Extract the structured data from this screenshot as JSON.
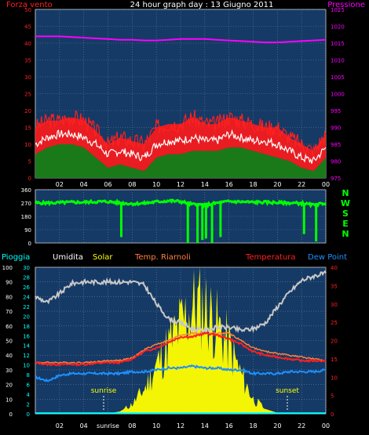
{
  "title": "24 hour graph day : 13 Giugno 2011",
  "colors": {
    "red": "#ff2020",
    "magenta": "#ff00ff",
    "green": "#1a7a1a",
    "brightGreen": "#00ff00",
    "white": "#ffffff",
    "yellow": "#ffff00",
    "orange": "#ff8040",
    "blue": "#1e90ff",
    "cyan": "#00ffff",
    "gray": "#c8c8c8",
    "navy": "#153a66",
    "grid": "#6b7f99"
  },
  "chart_data": [
    {
      "type": "line",
      "left_label": "Forza vento",
      "right_label": "Pressione",
      "x_ticks": [
        "02",
        "04",
        "06",
        "08",
        "10",
        "12",
        "14",
        "16",
        "18",
        "20",
        "22",
        "00"
      ],
      "ylim_left": [
        0,
        50
      ],
      "y_ticks_left": [
        0,
        5,
        10,
        15,
        20,
        25,
        30,
        35,
        40,
        45,
        50
      ],
      "ylim_right": [
        975,
        1025
      ],
      "y_ticks_right": [
        975,
        980,
        985,
        990,
        995,
        1000,
        1005,
        1010,
        1015,
        1020,
        1025
      ],
      "x": [
        0,
        1,
        2,
        3,
        4,
        5,
        6,
        7,
        8,
        9,
        10,
        11,
        12,
        13,
        14,
        15,
        16,
        17,
        18,
        19,
        20,
        21,
        22,
        23,
        24
      ],
      "series": [
        {
          "axis": "right",
          "values": [
            1017,
            1017,
            1017,
            1016.8,
            1016.6,
            1016.4,
            1016.2,
            1016,
            1016,
            1015.8,
            1015.8,
            1016,
            1016.2,
            1016.2,
            1016.2,
            1016,
            1015.8,
            1015.6,
            1015.4,
            1015.2,
            1015.2,
            1015.4,
            1015.6,
            1015.8,
            1016
          ]
        },
        {
          "axis": "left",
          "values": [
            15,
            17,
            17,
            18,
            17,
            14,
            10,
            12,
            11,
            10,
            15,
            16,
            16,
            18,
            16,
            16,
            18,
            17,
            16,
            15,
            15,
            12,
            10,
            8,
            13
          ]
        },
        {
          "axis": "left",
          "values": [
            10,
            12,
            13,
            13,
            12,
            10,
            7,
            8,
            7,
            6,
            10,
            11,
            11,
            12,
            11,
            11,
            13,
            12,
            11,
            11,
            10,
            8,
            6,
            5,
            9
          ]
        },
        {
          "axis": "left",
          "values": [
            7,
            9,
            10,
            10,
            9,
            6,
            3,
            4,
            3,
            2,
            6,
            7,
            7,
            8,
            8,
            8,
            9,
            9,
            8,
            7,
            6,
            5,
            3,
            2,
            6
          ]
        }
      ]
    },
    {
      "type": "line",
      "right_label": "NWSEN",
      "ylim": [
        0,
        360
      ],
      "y_ticks": [
        0,
        90,
        180,
        270,
        360
      ],
      "x": [
        0,
        1,
        2,
        3,
        4,
        5,
        6,
        7,
        8,
        9,
        10,
        11,
        12,
        13,
        14,
        15,
        16,
        17,
        18,
        19,
        20,
        21,
        22,
        23,
        24
      ],
      "series": [
        {
          "values": [
            270,
            270,
            272,
            275,
            275,
            278,
            280,
            270,
            265,
            268,
            278,
            285,
            280,
            260,
            255,
            270,
            280,
            278,
            275,
            275,
            272,
            270,
            268,
            255,
            270
          ]
        }
      ]
    },
    {
      "type": "line",
      "legend": [
        "Pioggia",
        "Umidita",
        "Solar",
        "Temp. Riarnoli",
        "Temperatura",
        "Dew Point"
      ],
      "ylim_left": [
        0,
        100
      ],
      "y_ticks_left": [
        0,
        10,
        20,
        30,
        40,
        50,
        60,
        70,
        80,
        90,
        100
      ],
      "ylim_mid": [
        0,
        30
      ],
      "y_ticks_mid": [
        0,
        2,
        4,
        6,
        8,
        10,
        12,
        14,
        16,
        18,
        20,
        22,
        24,
        26,
        28,
        30
      ],
      "ylim_right": [
        0,
        40
      ],
      "y_ticks_right": [
        0,
        5,
        10,
        15,
        20,
        25,
        30,
        35,
        40
      ],
      "x_ticks": [
        "02",
        "04",
        "sunrise",
        "08",
        "10",
        "12",
        "14",
        "16",
        "18",
        "20",
        "22",
        "00"
      ],
      "annotations": [
        "sunrise",
        "sunset"
      ],
      "x": [
        0,
        1,
        2,
        3,
        4,
        5,
        6,
        7,
        8,
        9,
        10,
        11,
        12,
        13,
        14,
        15,
        16,
        17,
        18,
        19,
        20,
        21,
        22,
        23,
        24
      ],
      "series": [
        {
          "name": "Umidita",
          "axis": "left",
          "values": [
            80,
            76,
            82,
            89,
            90,
            90,
            90,
            90,
            90,
            88,
            75,
            65,
            62,
            58,
            57,
            59,
            59,
            57,
            58,
            62,
            73,
            83,
            91,
            94,
            96
          ]
        },
        {
          "name": "Temperatura",
          "axis": "right",
          "values": [
            14,
            13.5,
            13.5,
            13.5,
            13.5,
            13.8,
            14,
            14,
            15,
            17,
            18,
            19.5,
            21,
            21,
            22,
            21.5,
            20.5,
            19,
            17,
            16,
            15.5,
            15,
            14.5,
            14.5,
            14.5
          ]
        },
        {
          "name": "Temp. Riarnoli",
          "axis": "right",
          "values": [
            14,
            14,
            14,
            14,
            14,
            14.2,
            14.5,
            14.6,
            15.2,
            17.5,
            19,
            20,
            21.5,
            22,
            22,
            22,
            22,
            20,
            18,
            17,
            16.5,
            16,
            15.5,
            15,
            14.5
          ]
        },
        {
          "name": "Dew Point",
          "axis": "right",
          "values": [
            10,
            9,
            10.5,
            11,
            11,
            11,
            11,
            11,
            11.5,
            11.5,
            12,
            12.5,
            12.5,
            13,
            12.5,
            12.5,
            12,
            12,
            11,
            11,
            11,
            11.5,
            11.5,
            11.5,
            12
          ]
        },
        {
          "name": "Solar",
          "axis": "mid",
          "values": [
            0,
            0,
            0,
            0,
            0,
            0,
            0,
            0.5,
            2,
            5,
            10,
            14,
            18,
            22,
            22,
            18,
            14,
            8,
            3,
            1,
            0.2,
            0,
            0,
            0,
            0
          ]
        },
        {
          "name": "Pioggia",
          "axis": "left",
          "values": [
            0.5,
            0.5,
            0.5,
            0.5,
            0.5,
            0.5,
            0.5,
            0.5,
            0.5,
            0.5,
            0.5,
            0.5,
            0.5,
            0.5,
            0.5,
            0.5,
            0.5,
            0.5,
            0.5,
            0.5,
            0.5,
            0.5,
            0.5,
            0.5,
            0.5
          ]
        }
      ]
    }
  ]
}
